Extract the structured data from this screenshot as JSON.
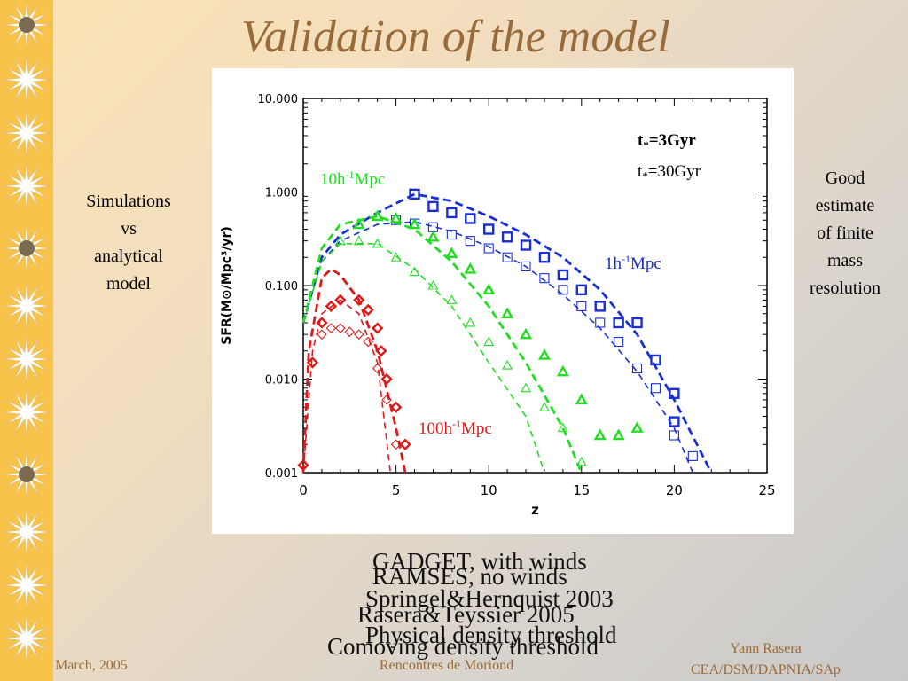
{
  "slide": {
    "title": "Validation of the model",
    "left_note": [
      "Simulations",
      "vs",
      "analytical",
      "model"
    ],
    "right_note": [
      "Good",
      "estimate",
      "of finite",
      "mass",
      "resolution"
    ],
    "captions": [
      "GADGET, with winds",
      "RAMSES, no winds",
      "Springel&Hernquist 2003",
      "Rasera&Teyssier 2005",
      "Physical density threshold",
      "Comoving density threshold"
    ],
    "footer": {
      "date": "March, 2005",
      "conference": "Rencontres de Moriond",
      "author_line1": "Yann Rasera",
      "author_line2": "CEA/DSM/DAPNIA/SAp"
    },
    "colors": {
      "title": "#9a6b3a",
      "sidebar": "#f7c348",
      "star": "#ffffff",
      "green": "#22dd22",
      "blue": "#1a2fd0",
      "red": "#dd1a1a"
    }
  },
  "chart_data": {
    "type": "scatter",
    "xlabel": "z",
    "ylabel": "SFR(M⊙/Mpc³/yr)",
    "xlim": [
      0,
      25
    ],
    "ylim": [
      0.001,
      10
    ],
    "yscale": "log",
    "xticks": [
      "0",
      "5",
      "10",
      "15",
      "20",
      "25"
    ],
    "yticks": [
      "0.001",
      "0.010",
      "0.100",
      "1.000",
      "10.000"
    ],
    "legend": [
      "t*=3Gyr",
      "t*=30Gyr"
    ],
    "box_labels": [
      {
        "text": "10h-1Mpc",
        "color": "#22dd22"
      },
      {
        "text": "1h-1Mpc",
        "color": "#1a2fd0"
      },
      {
        "text": "100h-1Mpc",
        "color": "#dd1a1a"
      }
    ],
    "series": [
      {
        "name": "1h-1Mpc",
        "color": "#1a2fd0",
        "marker": "square",
        "points_3gyr": [
          [
            6,
            0.95
          ],
          [
            7,
            0.7
          ],
          [
            8,
            0.6
          ],
          [
            9,
            0.52
          ],
          [
            10,
            0.4
          ],
          [
            11,
            0.33
          ],
          [
            12,
            0.27
          ],
          [
            13,
            0.2
          ],
          [
            14,
            0.13
          ],
          [
            15,
            0.09
          ],
          [
            16,
            0.06
          ],
          [
            17,
            0.04
          ],
          [
            18,
            0.04
          ],
          [
            19,
            0.016
          ],
          [
            20,
            0.007
          ],
          [
            20,
            0.0035
          ]
        ],
        "points_30gyr": [
          [
            5,
            0.5
          ],
          [
            6,
            0.46
          ],
          [
            7,
            0.42
          ],
          [
            8,
            0.35
          ],
          [
            9,
            0.3
          ],
          [
            10,
            0.25
          ],
          [
            11,
            0.2
          ],
          [
            12,
            0.16
          ],
          [
            13,
            0.12
          ],
          [
            14,
            0.09
          ],
          [
            15,
            0.06
          ],
          [
            16,
            0.04
          ],
          [
            17,
            0.025
          ],
          [
            18,
            0.013
          ],
          [
            19,
            0.008
          ],
          [
            20,
            0.0025
          ],
          [
            21,
            0.0015
          ]
        ],
        "curve_3gyr": [
          [
            0,
            0.04
          ],
          [
            1,
            0.2
          ],
          [
            2,
            0.35
          ],
          [
            4,
            0.6
          ],
          [
            6,
            0.95
          ],
          [
            8,
            0.8
          ],
          [
            10,
            0.55
          ],
          [
            12,
            0.35
          ],
          [
            14,
            0.2
          ],
          [
            16,
            0.09
          ],
          [
            18,
            0.03
          ],
          [
            20,
            0.006
          ],
          [
            22,
            0.001
          ]
        ],
        "curve_30gyr": [
          [
            0,
            0.04
          ],
          [
            1,
            0.18
          ],
          [
            2,
            0.3
          ],
          [
            4,
            0.45
          ],
          [
            6,
            0.48
          ],
          [
            8,
            0.38
          ],
          [
            10,
            0.26
          ],
          [
            12,
            0.16
          ],
          [
            14,
            0.08
          ],
          [
            16,
            0.035
          ],
          [
            18,
            0.012
          ],
          [
            20,
            0.003
          ],
          [
            21,
            0.001
          ]
        ]
      },
      {
        "name": "10h-1Mpc",
        "color": "#22dd22",
        "marker": "triangle",
        "points_3gyr": [
          [
            3,
            0.45
          ],
          [
            4,
            0.55
          ],
          [
            5,
            0.52
          ],
          [
            6,
            0.45
          ],
          [
            7,
            0.33
          ],
          [
            8,
            0.22
          ],
          [
            9,
            0.15
          ],
          [
            10,
            0.09
          ],
          [
            11,
            0.05
          ],
          [
            12,
            0.03
          ],
          [
            13,
            0.018
          ],
          [
            14,
            0.012
          ],
          [
            15,
            0.006
          ],
          [
            16,
            0.0025
          ],
          [
            17,
            0.0025
          ],
          [
            18,
            0.003
          ]
        ],
        "points_30gyr": [
          [
            2,
            0.3
          ],
          [
            3,
            0.3
          ],
          [
            4,
            0.28
          ],
          [
            5,
            0.2
          ],
          [
            6,
            0.14
          ],
          [
            7,
            0.1
          ],
          [
            8,
            0.07
          ],
          [
            9,
            0.04
          ],
          [
            10,
            0.025
          ],
          [
            11,
            0.014
          ],
          [
            12,
            0.008
          ],
          [
            13,
            0.005
          ],
          [
            14,
            0.003
          ],
          [
            15,
            0.0013
          ]
        ],
        "curve_3gyr": [
          [
            0,
            0.04
          ],
          [
            1,
            0.25
          ],
          [
            2,
            0.45
          ],
          [
            4,
            0.55
          ],
          [
            6,
            0.4
          ],
          [
            8,
            0.18
          ],
          [
            10,
            0.06
          ],
          [
            12,
            0.015
          ],
          [
            14,
            0.003
          ],
          [
            15,
            0.001
          ]
        ],
        "curve_30gyr": [
          [
            0,
            0.04
          ],
          [
            1,
            0.18
          ],
          [
            2,
            0.28
          ],
          [
            4,
            0.28
          ],
          [
            6,
            0.15
          ],
          [
            8,
            0.06
          ],
          [
            10,
            0.015
          ],
          [
            12,
            0.004
          ],
          [
            13,
            0.001
          ]
        ]
      },
      {
        "name": "100h-1Mpc",
        "color": "#dd1a1a",
        "marker": "diamond",
        "points_3gyr": [
          [
            0.5,
            0.015
          ],
          [
            1,
            0.04
          ],
          [
            1.5,
            0.06
          ],
          [
            2,
            0.07
          ],
          [
            3,
            0.07
          ],
          [
            3.5,
            0.055
          ],
          [
            4,
            0.035
          ],
          [
            4.2,
            0.02
          ],
          [
            4.5,
            0.01
          ],
          [
            5,
            0.005
          ],
          [
            5.5,
            0.002
          ],
          [
            0,
            0.0012
          ]
        ],
        "points_30gyr": [
          [
            1,
            0.03
          ],
          [
            1.5,
            0.035
          ],
          [
            2,
            0.035
          ],
          [
            2.5,
            0.032
          ],
          [
            3,
            0.03
          ],
          [
            3.5,
            0.025
          ],
          [
            4,
            0.013
          ],
          [
            4.5,
            0.006
          ],
          [
            5,
            0.002
          ]
        ],
        "curve_3gyr": [
          [
            0,
            0.001
          ],
          [
            0.3,
            0.02
          ],
          [
            1,
            0.12
          ],
          [
            1.5,
            0.15
          ],
          [
            2,
            0.13
          ],
          [
            3,
            0.07
          ],
          [
            4,
            0.02
          ],
          [
            5,
            0.003
          ],
          [
            5.5,
            0.001
          ]
        ],
        "curve_30gyr": [
          [
            0,
            0.001
          ],
          [
            0.5,
            0.02
          ],
          [
            1,
            0.05
          ],
          [
            2,
            0.07
          ],
          [
            3,
            0.05
          ],
          [
            4,
            0.015
          ],
          [
            4.7,
            0.001
          ]
        ]
      }
    ]
  }
}
